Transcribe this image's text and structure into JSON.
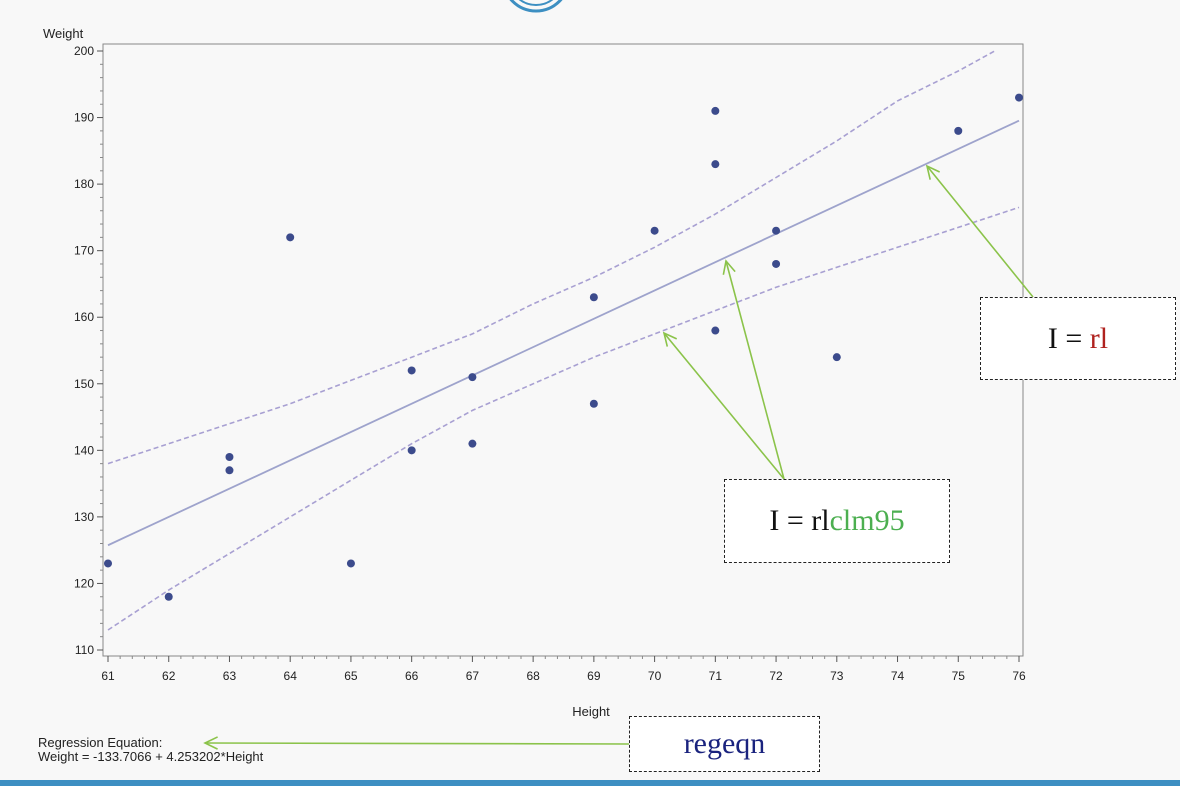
{
  "chart_data": {
    "type": "scatter",
    "xlabel": "Height",
    "ylabel": "Weight",
    "xlim": [
      61,
      76
    ],
    "ylim": [
      110,
      200
    ],
    "x_ticks": [
      61,
      62,
      63,
      64,
      65,
      66,
      67,
      68,
      69,
      70,
      71,
      72,
      73,
      74,
      75,
      76
    ],
    "y_ticks": [
      110,
      120,
      130,
      140,
      150,
      160,
      170,
      180,
      190,
      200
    ],
    "points": [
      {
        "x": 61,
        "y": 123
      },
      {
        "x": 62,
        "y": 118
      },
      {
        "x": 63,
        "y": 139
      },
      {
        "x": 63,
        "y": 137
      },
      {
        "x": 64,
        "y": 172
      },
      {
        "x": 65,
        "y": 123
      },
      {
        "x": 66,
        "y": 152
      },
      {
        "x": 66,
        "y": 140
      },
      {
        "x": 67,
        "y": 151
      },
      {
        "x": 67,
        "y": 141
      },
      {
        "x": 69,
        "y": 163
      },
      {
        "x": 69,
        "y": 147
      },
      {
        "x": 70,
        "y": 173
      },
      {
        "x": 71,
        "y": 191
      },
      {
        "x": 71,
        "y": 183
      },
      {
        "x": 71,
        "y": 158
      },
      {
        "x": 72,
        "y": 173
      },
      {
        "x": 72,
        "y": 168
      },
      {
        "x": 73,
        "y": 154
      },
      {
        "x": 75,
        "y": 188
      },
      {
        "x": 76,
        "y": 193
      }
    ],
    "regression": {
      "intercept": -133.7066,
      "slope": 4.253202
    },
    "clm_upper": [
      [
        61,
        138
      ],
      [
        62,
        141
      ],
      [
        63,
        144
      ],
      [
        64,
        147
      ],
      [
        65,
        150.5
      ],
      [
        66,
        154
      ],
      [
        67,
        157.5
      ],
      [
        68,
        162
      ],
      [
        69,
        166
      ],
      [
        70,
        170.5
      ],
      [
        71,
        175.5
      ],
      [
        72,
        181
      ],
      [
        73,
        186.5
      ],
      [
        74,
        192.5
      ],
      [
        75,
        197
      ],
      [
        75.6,
        200
      ]
    ],
    "clm_lower": [
      [
        61,
        113
      ],
      [
        62,
        119
      ],
      [
        63,
        124.5
      ],
      [
        64,
        130
      ],
      [
        65,
        135.5
      ],
      [
        66,
        141
      ],
      [
        67,
        146
      ],
      [
        68,
        150
      ],
      [
        69,
        154
      ],
      [
        70,
        157.5
      ],
      [
        71,
        161
      ],
      [
        72,
        164.5
      ],
      [
        73,
        167.5
      ],
      [
        74,
        170.5
      ],
      [
        75,
        173.5
      ],
      [
        76,
        176.5
      ]
    ],
    "colors": {
      "points": "#3c4b8c",
      "fit_line": "#9ea3cc",
      "clm_line": "#a8a0d2",
      "arrows": "#8bc34a"
    }
  },
  "callouts": {
    "rl": {
      "prefix": "I = ",
      "highlight": "rl"
    },
    "rlclm95": {
      "prefix": "I = rl",
      "highlight": "clm95"
    },
    "regeqn": {
      "text": "regeqn"
    }
  },
  "equation": {
    "line1": "Regression Equation:",
    "line2": "Weight = -133.7066 + 4.253202*Height"
  }
}
